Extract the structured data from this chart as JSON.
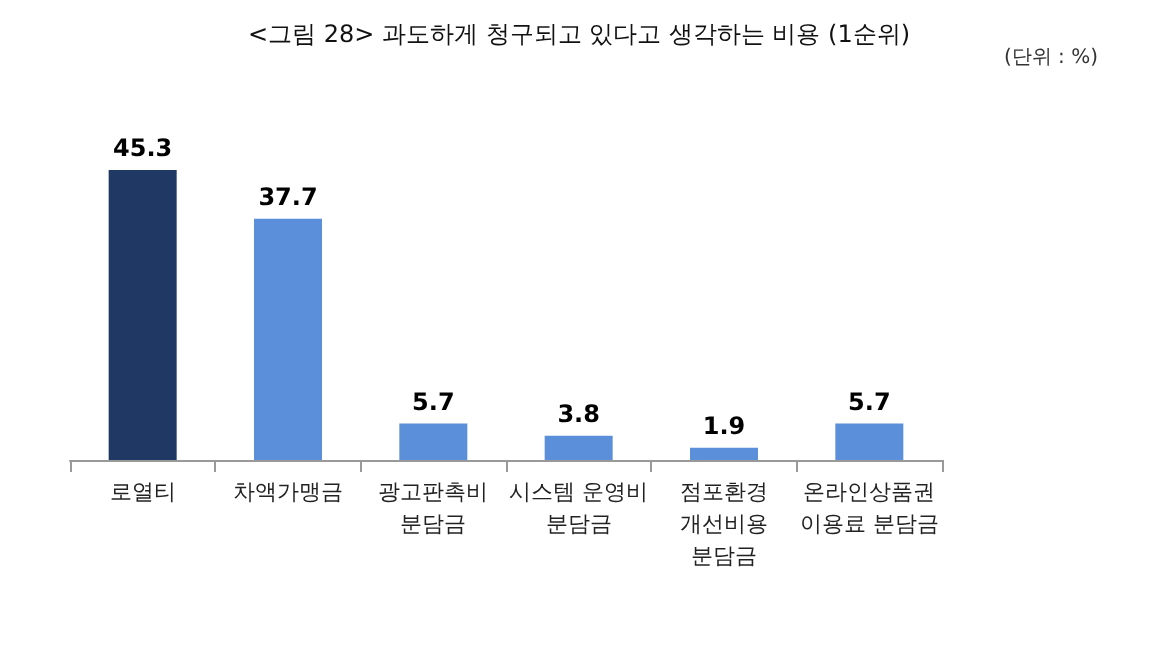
{
  "chart_data": {
    "type": "bar",
    "title": "<그림 28> 과도하게 청구되고 있다고 생각하는 비용 (1순위)",
    "annotations": [
      "(단위 : %)"
    ],
    "categories": [
      "로열티",
      "차액가맹금",
      "광고판촉비\n분담금",
      "시스템 운영비\n분담금",
      "점포환경\n개선비용\n분담금",
      "온라인상품권\n이용료 분담금"
    ],
    "values": [
      45.3,
      37.7,
      5.7,
      3.8,
      1.9,
      5.7
    ],
    "colors": [
      "#1f3864",
      "#5b8fd9",
      "#5b8fd9",
      "#5b8fd9",
      "#5b8fd9",
      "#5b8fd9"
    ],
    "data_labels": true
  }
}
